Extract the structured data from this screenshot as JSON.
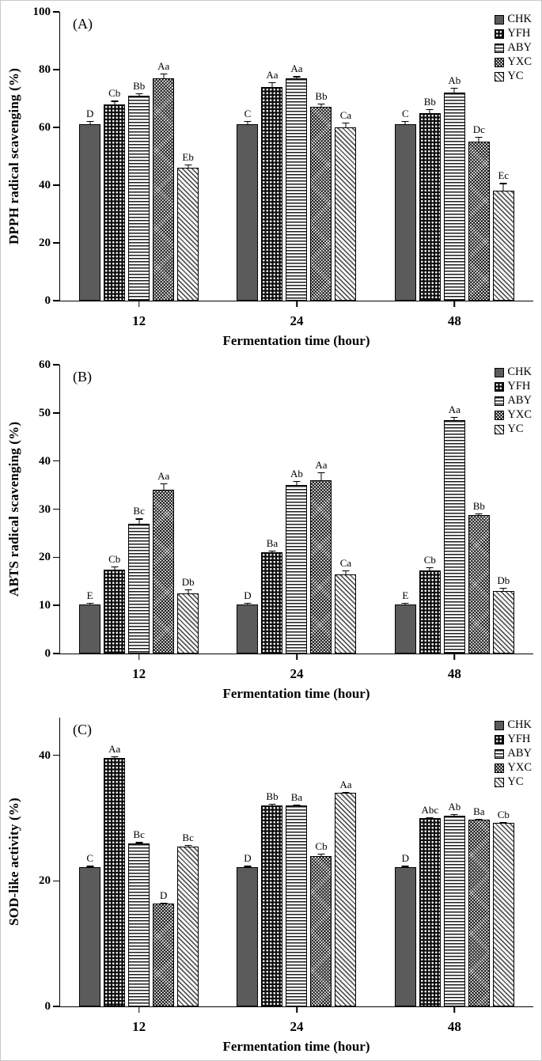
{
  "chart_data": [
    {
      "type": "bar",
      "panel_label": "(A)",
      "ylabel": "DPPH radical scavenging (%)",
      "xlabel": "Fermentation time (hour)",
      "ylim": [
        0,
        100
      ],
      "yticks": [
        0,
        20,
        40,
        60,
        80,
        100
      ],
      "categories": [
        "12",
        "24",
        "48"
      ],
      "legend_position": "top-right",
      "grid": false,
      "series": [
        {
          "name": "CHK",
          "pattern": "solid",
          "values": [
            61,
            61,
            61
          ],
          "errors": [
            1.5,
            1.5,
            1.5
          ],
          "labels": [
            "D",
            "C",
            "C"
          ]
        },
        {
          "name": "YFH",
          "pattern": "dots",
          "values": [
            68,
            74,
            65
          ],
          "errors": [
            1.5,
            2,
            1.5
          ],
          "labels": [
            "Cb",
            "Aa",
            "Bb"
          ]
        },
        {
          "name": "ABY",
          "pattern": "hlines",
          "values": [
            71,
            77,
            72
          ],
          "errors": [
            1,
            1,
            2
          ],
          "labels": [
            "Bb",
            "Aa",
            "Ab"
          ]
        },
        {
          "name": "YXC",
          "pattern": "crosshatch",
          "values": [
            77,
            67,
            55
          ],
          "errors": [
            2,
            1.5,
            2
          ],
          "labels": [
            "Aa",
            "Bb",
            "Dc"
          ]
        },
        {
          "name": "YC",
          "pattern": "diag",
          "values": [
            46,
            60,
            38
          ],
          "errors": [
            1.5,
            2,
            3
          ],
          "labels": [
            "Eb",
            "Ca",
            "Ec"
          ]
        }
      ]
    },
    {
      "type": "bar",
      "panel_label": "(B)",
      "ylabel": "ABTS radical scavenging (%)",
      "xlabel": "Fermentation time (hour)",
      "ylim": [
        0,
        60
      ],
      "yticks": [
        0,
        10,
        20,
        30,
        40,
        50,
        60
      ],
      "categories": [
        "12",
        "24",
        "48"
      ],
      "legend_position": "top-right",
      "grid": false,
      "series": [
        {
          "name": "CHK",
          "pattern": "solid",
          "values": [
            10.2,
            10.2,
            10.2
          ],
          "errors": [
            0.5,
            0.5,
            0.5
          ],
          "labels": [
            "E",
            "D",
            "E"
          ]
        },
        {
          "name": "YFH",
          "pattern": "dots",
          "values": [
            17.5,
            21,
            17.3
          ],
          "errors": [
            0.8,
            0.5,
            0.8
          ],
          "labels": [
            "Cb",
            "Ba",
            "Cb"
          ]
        },
        {
          "name": "ABY",
          "pattern": "hlines",
          "values": [
            27,
            35,
            48.5
          ],
          "errors": [
            1.2,
            1,
            0.8
          ],
          "labels": [
            "Bc",
            "Ab",
            "Aa"
          ]
        },
        {
          "name": "YXC",
          "pattern": "crosshatch",
          "values": [
            34,
            36,
            28.8
          ],
          "errors": [
            1.5,
            1.8,
            0.5
          ],
          "labels": [
            "Aa",
            "Aa",
            "Bb"
          ]
        },
        {
          "name": "YC",
          "pattern": "diag",
          "values": [
            12.5,
            16.5,
            13
          ],
          "errors": [
            1,
            1,
            0.8
          ],
          "labels": [
            "Db",
            "Ca",
            "Db"
          ]
        }
      ]
    },
    {
      "type": "bar",
      "panel_label": "(C)",
      "ylabel": "SOD-like activity (%)",
      "xlabel": "Fermentation time (hour)",
      "ylim": [
        0,
        46
      ],
      "yticks": [
        0,
        20,
        40
      ],
      "categories": [
        "12",
        "24",
        "48"
      ],
      "legend_position": "top-right",
      "grid": false,
      "series": [
        {
          "name": "CHK",
          "pattern": "solid",
          "values": [
            22.2,
            22.2,
            22.2
          ],
          "errors": [
            0.3,
            0.3,
            0.3
          ],
          "labels": [
            "C",
            "D",
            "D"
          ]
        },
        {
          "name": "YFH",
          "pattern": "dots",
          "values": [
            39.6,
            32,
            30
          ],
          "errors": [
            0.4,
            0.4,
            0.3
          ],
          "labels": [
            "Aa",
            "Bb",
            "Abc"
          ]
        },
        {
          "name": "ABY",
          "pattern": "hlines",
          "values": [
            26,
            32,
            30.4
          ],
          "errors": [
            0.3,
            0.3,
            0.4
          ],
          "labels": [
            "Bc",
            "Ba",
            "Ab"
          ]
        },
        {
          "name": "YXC",
          "pattern": "crosshatch",
          "values": [
            16.4,
            24,
            29.7
          ],
          "errors": [
            0.3,
            0.5,
            0.3
          ],
          "labels": [
            "D",
            "Cb",
            "Ba"
          ]
        },
        {
          "name": "YC",
          "pattern": "diag",
          "values": [
            25.5,
            34,
            29.2
          ],
          "errors": [
            0.3,
            0.3,
            0.3
          ],
          "labels": [
            "Bc",
            "Aa",
            "Cb"
          ]
        }
      ]
    }
  ]
}
